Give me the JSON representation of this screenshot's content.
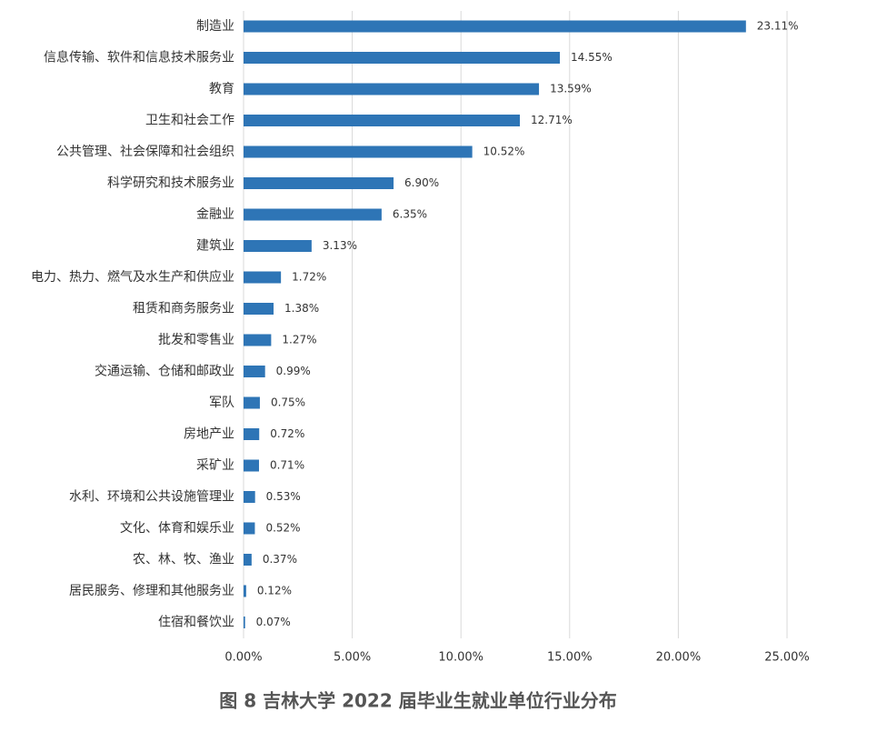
{
  "chart_data": {
    "type": "bar",
    "orientation": "horizontal",
    "title": "图 8 吉林大学 2022 届毕业生就业单位行业分布",
    "categories": [
      "制造业",
      "信息传输、软件和信息技术服务业",
      "教育",
      "卫生和社会工作",
      "公共管理、社会保障和社会组织",
      "科学研究和技术服务业",
      "金融业",
      "建筑业",
      "电力、热力、燃气及水生产和供应业",
      "租赁和商务服务业",
      "批发和零售业",
      "交通运输、仓储和邮政业",
      "军队",
      "房地产业",
      "采矿业",
      "水利、环境和公共设施管理业",
      "文化、体育和娱乐业",
      "农、林、牧、渔业",
      "居民服务、修理和其他服务业",
      "住宿和餐饮业"
    ],
    "values": [
      23.11,
      14.55,
      13.59,
      12.71,
      10.52,
      6.9,
      6.35,
      3.13,
      1.72,
      1.38,
      1.27,
      0.99,
      0.75,
      0.72,
      0.71,
      0.53,
      0.52,
      0.37,
      0.12,
      0.07
    ],
    "value_labels": [
      "23.11%",
      "14.55%",
      "13.59%",
      "12.71%",
      "10.52%",
      "6.90%",
      "6.35%",
      "3.13%",
      "1.72%",
      "1.38%",
      "1.27%",
      "0.99%",
      "0.75%",
      "0.72%",
      "0.71%",
      "0.53%",
      "0.52%",
      "0.37%",
      "0.12%",
      "0.07%"
    ],
    "color": "#2e75b6",
    "xlim": [
      0,
      25
    ],
    "xticks": [
      {
        "value": 0,
        "label": "0.00%"
      },
      {
        "value": 5,
        "label": "5.00%"
      },
      {
        "value": 10,
        "label": "10.00%"
      },
      {
        "value": 15,
        "label": "15.00%"
      },
      {
        "value": 20,
        "label": "20.00%"
      },
      {
        "value": 25,
        "label": "25.00%"
      }
    ],
    "grid": true
  }
}
